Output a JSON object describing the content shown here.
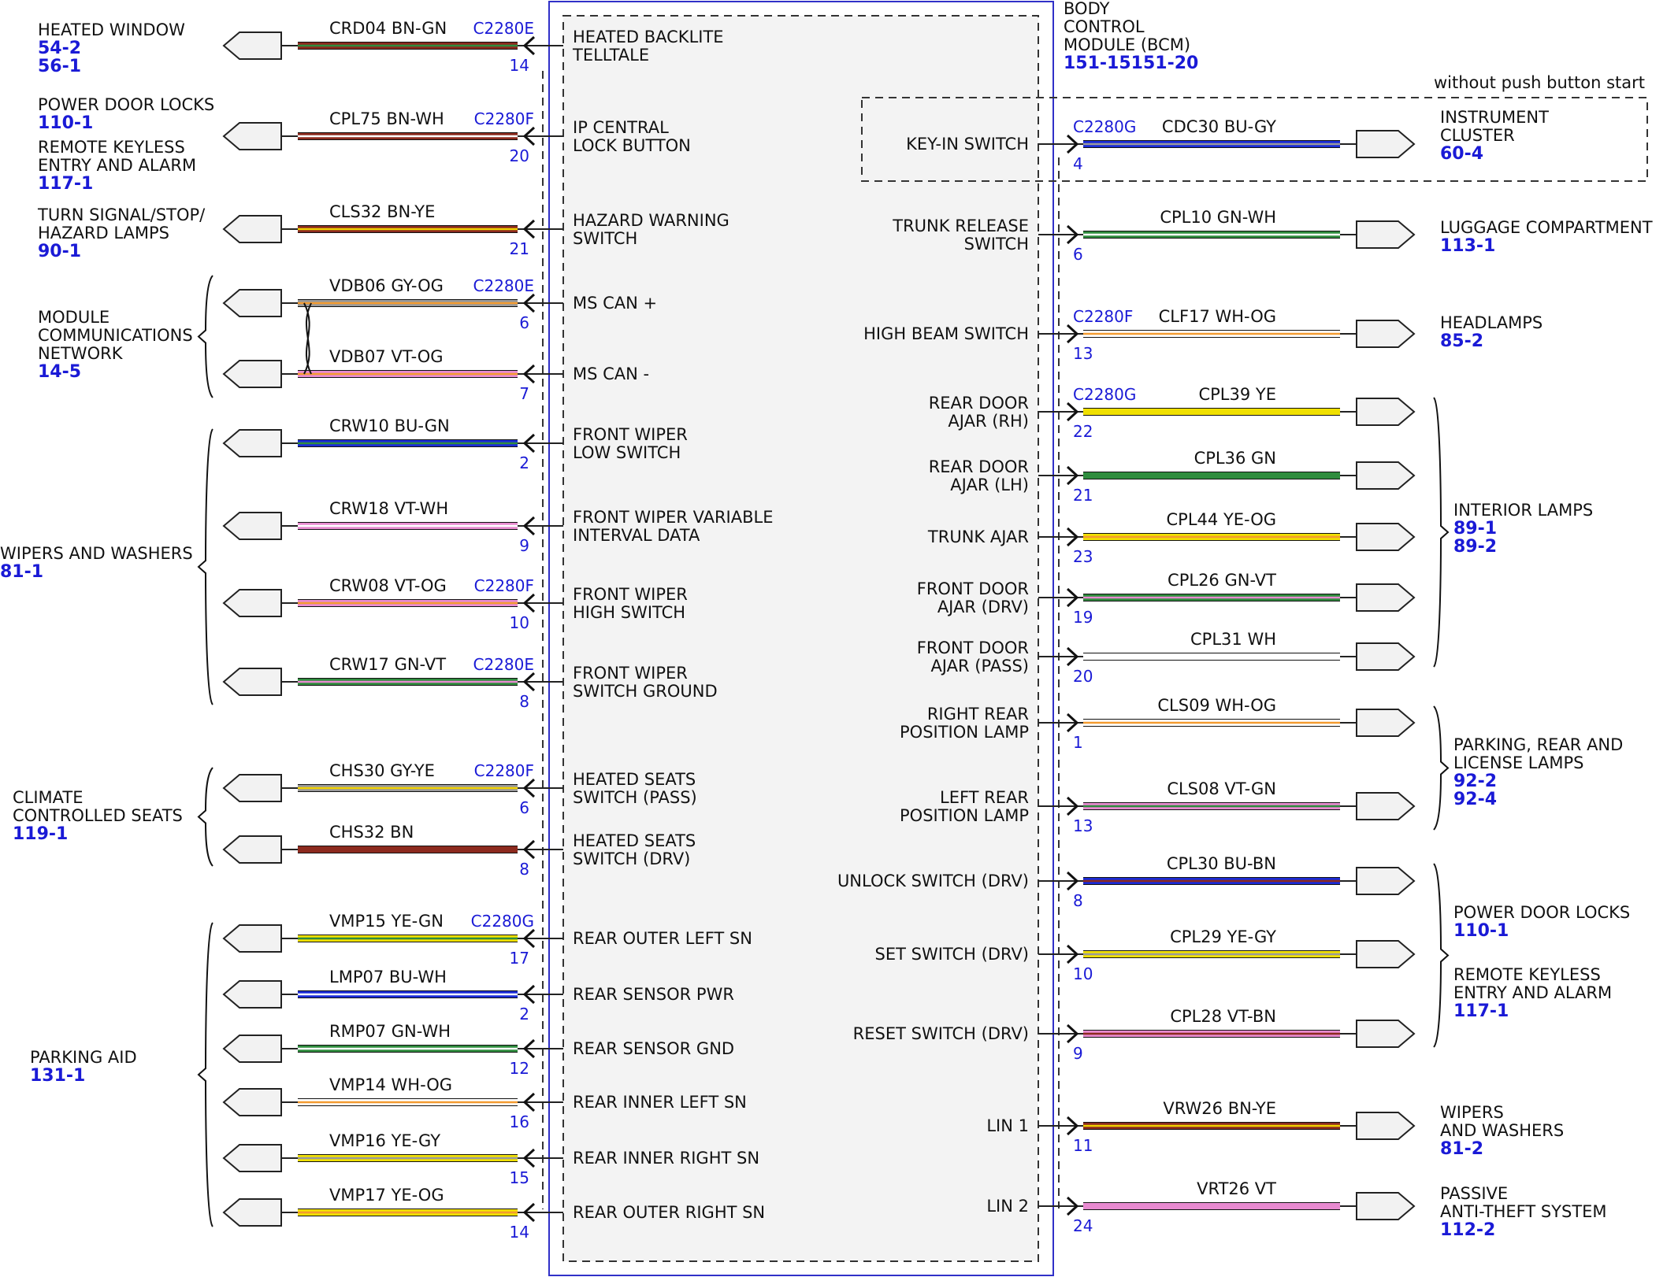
{
  "module": {
    "label_lines": [
      "BODY",
      "CONTROL",
      "MODULE (BCM)"
    ],
    "ref": "151-15151-20",
    "optional_note": "without push button start"
  },
  "colors": {
    "module_border": "#3030c8",
    "module_fill": "#f3f3f3",
    "pin_number": "#1a1ad6",
    "page_ref": "#1a1ad6"
  },
  "left_circuits": [
    {
      "circuit": "CRD04  BN-GN",
      "connector": "C2280E",
      "pin": "14",
      "signal_lines": [
        "HEATED BACKLITE",
        "TELLTALE"
      ],
      "wire_colors": [
        "#8c2a1e",
        "#2f8c3e"
      ]
    },
    {
      "circuit": "CPL75  BN-WH",
      "connector": "C2280F",
      "pin": "20",
      "signal_lines": [
        "IP CENTRAL",
        "LOCK BUTTON"
      ],
      "wire_colors": [
        "#8c2a1e",
        "#ffffff"
      ]
    },
    {
      "circuit": "CLS32  BN-YE",
      "connector": "",
      "pin": "21",
      "signal_lines": [
        "HAZARD WARNING",
        "SWITCH"
      ],
      "wire_colors": [
        "#8c2a1e",
        "#f0d000"
      ]
    },
    {
      "circuit": "VDB06  GY-OG",
      "connector": "C2280E",
      "pin": "6",
      "signal_lines": [
        "MS CAN +"
      ],
      "wire_colors": [
        "#9a9a9a",
        "#f39b30"
      ]
    },
    {
      "circuit": "VDB07  VT-OG",
      "connector": "",
      "pin": "7",
      "signal_lines": [
        "MS CAN -"
      ],
      "wire_colors": [
        "#e88ad0",
        "#f39b30"
      ]
    },
    {
      "circuit": "CRW10  BU-GN",
      "connector": "",
      "pin": "2",
      "signal_lines": [
        "FRONT WIPER",
        "LOW SWITCH"
      ],
      "wire_colors": [
        "#1a2bd6",
        "#2f8c3e"
      ]
    },
    {
      "circuit": "CRW18  VT-WH",
      "connector": "",
      "pin": "9",
      "signal_lines": [
        "FRONT WIPER VARIABLE",
        "INTERVAL DATA"
      ],
      "wire_colors": [
        "#e88ad0",
        "#ffffff"
      ]
    },
    {
      "circuit": "CRW08  VT-OG",
      "connector": "C2280F",
      "pin": "10",
      "signal_lines": [
        "FRONT WIPER",
        "HIGH SWITCH"
      ],
      "wire_colors": [
        "#e88ad0",
        "#f39b30"
      ]
    },
    {
      "circuit": "CRW17  GN-VT",
      "connector": "C2280E",
      "pin": "8",
      "signal_lines": [
        "FRONT WIPER",
        "SWITCH GROUND"
      ],
      "wire_colors": [
        "#2f8c3e",
        "#e88ad0"
      ]
    },
    {
      "circuit": "CHS30  GY-YE",
      "connector": "C2280F",
      "pin": "6",
      "signal_lines": [
        "HEATED SEATS",
        "SWITCH (PASS)"
      ],
      "wire_colors": [
        "#9a9a9a",
        "#f0d000"
      ]
    },
    {
      "circuit": "CHS32  BN",
      "connector": "",
      "pin": "8",
      "signal_lines": [
        "HEATED SEATS",
        "SWITCH (DRV)"
      ],
      "wire_colors": [
        "#8c2a1e",
        "#8c2a1e"
      ]
    },
    {
      "circuit": "VMP15  YE-GN",
      "connector": "C2280G",
      "pin": "17",
      "signal_lines": [
        "REAR OUTER LEFT SN"
      ],
      "wire_colors": [
        "#f0e000",
        "#2f8c3e"
      ]
    },
    {
      "circuit": "LMP07  BU-WH",
      "connector": "",
      "pin": "2",
      "signal_lines": [
        "REAR SENSOR PWR"
      ],
      "wire_colors": [
        "#1a2bd6",
        "#ffffff"
      ]
    },
    {
      "circuit": "RMP07  GN-WH",
      "connector": "",
      "pin": "12",
      "signal_lines": [
        "REAR SENSOR GND"
      ],
      "wire_colors": [
        "#2f8c3e",
        "#ffffff"
      ]
    },
    {
      "circuit": "VMP14  WH-OG",
      "connector": "",
      "pin": "16",
      "signal_lines": [
        "REAR INNER LEFT SN"
      ],
      "wire_colors": [
        "#ffffff",
        "#f39b30"
      ]
    },
    {
      "circuit": "VMP16  YE-GY",
      "connector": "",
      "pin": "15",
      "signal_lines": [
        "REAR INNER RIGHT SN"
      ],
      "wire_colors": [
        "#f0e000",
        "#9a9a9a"
      ]
    },
    {
      "circuit": "VMP17  YE-OG",
      "connector": "",
      "pin": "14",
      "signal_lines": [
        "REAR OUTER RIGHT SN"
      ],
      "wire_colors": [
        "#f0e000",
        "#f39b30"
      ]
    }
  ],
  "right_circuits": [
    {
      "circuit": "CDC30  BU-GY",
      "connector": "C2280G",
      "pin": "4",
      "signal_lines": [
        "KEY-IN SWITCH"
      ],
      "wire_colors": [
        "#1a2bd6",
        "#9a9a9a"
      ]
    },
    {
      "circuit": "CPL10  GN-WH",
      "connector": "",
      "pin": "6",
      "signal_lines": [
        "TRUNK RELEASE",
        "SWITCH"
      ],
      "wire_colors": [
        "#2f8c3e",
        "#ffffff"
      ]
    },
    {
      "circuit": "CLF17  WH-OG",
      "connector": "C2280F",
      "pin": "13",
      "signal_lines": [
        "HIGH BEAM SWITCH"
      ],
      "wire_colors": [
        "#ffffff",
        "#f39b30"
      ]
    },
    {
      "circuit": "CPL39  YE",
      "connector": "C2280G",
      "pin": "22",
      "signal_lines": [
        "REAR DOOR",
        "AJAR (RH)"
      ],
      "wire_colors": [
        "#f0e000",
        "#f0e000"
      ]
    },
    {
      "circuit": "CPL36  GN",
      "connector": "",
      "pin": "21",
      "signal_lines": [
        "REAR DOOR",
        "AJAR (LH)"
      ],
      "wire_colors": [
        "#2f8c3e",
        "#2f8c3e"
      ]
    },
    {
      "circuit": "CPL44  YE-OG",
      "connector": "",
      "pin": "23",
      "signal_lines": [
        "TRUNK AJAR"
      ],
      "wire_colors": [
        "#f0e000",
        "#f39b30"
      ]
    },
    {
      "circuit": "CPL26  GN-VT",
      "connector": "",
      "pin": "19",
      "signal_lines": [
        "FRONT DOOR",
        "AJAR (DRV)"
      ],
      "wire_colors": [
        "#2f8c3e",
        "#e88ad0"
      ]
    },
    {
      "circuit": "CPL31  WH",
      "connector": "",
      "pin": "20",
      "signal_lines": [
        "FRONT DOOR",
        "AJAR (PASS)"
      ],
      "wire_colors": [
        "#ffffff",
        "#ffffff"
      ]
    },
    {
      "circuit": "CLS09  WH-OG",
      "connector": "",
      "pin": "1",
      "signal_lines": [
        "RIGHT REAR",
        "POSITION LAMP"
      ],
      "wire_colors": [
        "#ffffff",
        "#f39b30"
      ]
    },
    {
      "circuit": "CLS08  VT-GN",
      "connector": "",
      "pin": "13",
      "signal_lines": [
        "LEFT REAR",
        "POSITION LAMP"
      ],
      "wire_colors": [
        "#e88ad0",
        "#2f8c3e"
      ]
    },
    {
      "circuit": "CPL30  BU-BN",
      "connector": "",
      "pin": "8",
      "signal_lines": [
        "UNLOCK SWITCH (DRV)"
      ],
      "wire_colors": [
        "#1a2bd6",
        "#8c2a1e"
      ]
    },
    {
      "circuit": "CPL29  YE-GY",
      "connector": "",
      "pin": "10",
      "signal_lines": [
        "SET SWITCH (DRV)"
      ],
      "wire_colors": [
        "#f0e000",
        "#9a9a9a"
      ]
    },
    {
      "circuit": "CPL28  VT-BN",
      "connector": "",
      "pin": "9",
      "signal_lines": [
        "RESET SWITCH (DRV)"
      ],
      "wire_colors": [
        "#e88ad0",
        "#8c2a1e"
      ]
    },
    {
      "circuit": "VRW26  BN-YE",
      "connector": "",
      "pin": "11",
      "signal_lines": [
        "LIN 1"
      ],
      "wire_colors": [
        "#8c2a1e",
        "#f0d000"
      ]
    },
    {
      "circuit": "VRT26  VT",
      "connector": "",
      "pin": "24",
      "signal_lines": [
        "LIN 2"
      ],
      "wire_colors": [
        "#e88ad0",
        "#e88ad0"
      ]
    }
  ],
  "left_destinations": [
    {
      "lines": [
        "HEATED WINDOW"
      ],
      "refs": [
        "54-2",
        "56-1"
      ]
    },
    {
      "lines": [
        "POWER DOOR LOCKS"
      ],
      "refs": [
        "110-1"
      ]
    },
    {
      "lines": [
        "REMOTE KEYLESS",
        "ENTRY AND ALARM"
      ],
      "refs": [
        "117-1"
      ]
    },
    {
      "lines": [
        "TURN SIGNAL/STOP/",
        "HAZARD LAMPS"
      ],
      "refs": [
        "90-1"
      ]
    },
    {
      "lines": [
        "MODULE",
        "COMMUNICATIONS",
        "NETWORK"
      ],
      "refs": [
        "14-5"
      ]
    },
    {
      "lines": [
        "WIPERS AND WASHERS"
      ],
      "refs": [
        "81-1"
      ]
    },
    {
      "lines": [
        "CLIMATE",
        "CONTROLLED SEATS"
      ],
      "refs": [
        "119-1"
      ]
    },
    {
      "lines": [
        "PARKING AID"
      ],
      "refs": [
        "131-1"
      ]
    }
  ],
  "right_destinations": [
    {
      "lines": [
        "INSTRUMENT",
        "CLUSTER"
      ],
      "refs": [
        "60-4"
      ]
    },
    {
      "lines": [
        "LUGGAGE COMPARTMENT"
      ],
      "refs": [
        "113-1"
      ]
    },
    {
      "lines": [
        "HEADLAMPS"
      ],
      "refs": [
        "85-2"
      ]
    },
    {
      "lines": [
        "INTERIOR LAMPS"
      ],
      "refs": [
        "89-1",
        "89-2"
      ]
    },
    {
      "lines": [
        "PARKING, REAR AND",
        "LICENSE LAMPS"
      ],
      "refs": [
        "92-2",
        "92-4"
      ]
    },
    {
      "lines": [
        "POWER DOOR LOCKS"
      ],
      "refs": [
        "110-1"
      ]
    },
    {
      "lines": [
        "REMOTE KEYLESS",
        "ENTRY AND ALARM"
      ],
      "refs": [
        "117-1"
      ]
    },
    {
      "lines": [
        "WIPERS",
        "AND WASHERS"
      ],
      "refs": [
        "81-2"
      ]
    },
    {
      "lines": [
        "PASSIVE",
        "ANTI-THEFT SYSTEM"
      ],
      "refs": [
        "112-2"
      ]
    }
  ]
}
